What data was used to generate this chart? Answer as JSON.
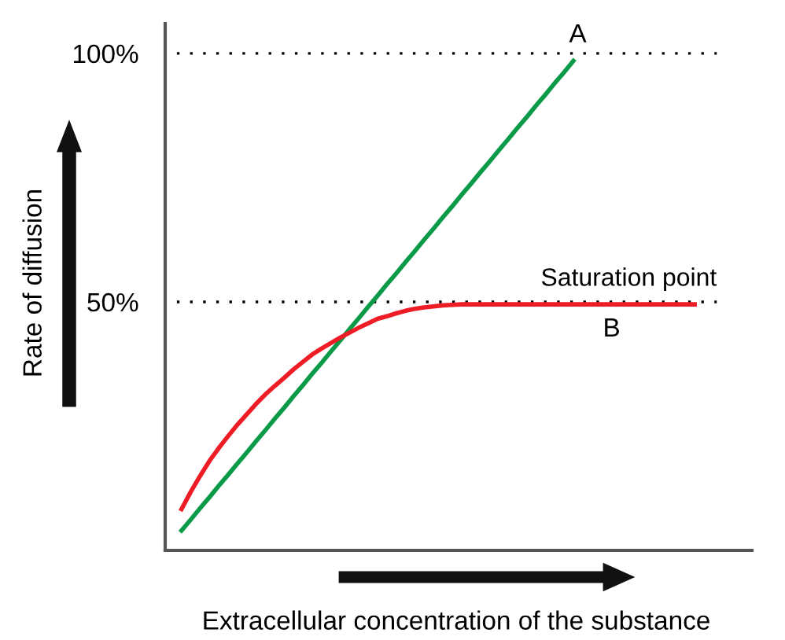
{
  "chart_data": {
    "type": "line",
    "xlabel": "Extracellular concentration of the substance",
    "ylabel": "Rate of diffusion",
    "categories": [
      null,
      null,
      null,
      null,
      null,
      null,
      null,
      null,
      null,
      null,
      null,
      null,
      null,
      null,
      null,
      null,
      null,
      null,
      null,
      null,
      null,
      null,
      null,
      null,
      null,
      null,
      null,
      null,
      null,
      null,
      null,
      null,
      null,
      null,
      null,
      null,
      null,
      null,
      null,
      null,
      null,
      null,
      null,
      null,
      null,
      null,
      null,
      null,
      null,
      null,
      null,
      null,
      null,
      null,
      null,
      null,
      null
    ],
    "series": [
      {
        "name": "A",
        "color": "#0a9a48",
        "values": [
          4.0,
          6.2,
          8.5,
          10.7,
          13.0,
          15.2,
          17.5,
          19.7,
          22.0,
          24.2,
          26.5,
          28.7,
          31.0,
          33.2,
          35.5,
          37.7,
          40.0,
          42.2,
          44.5,
          46.7,
          49.0,
          51.2,
          53.5,
          55.7,
          58.0,
          60.2,
          62.5,
          64.7,
          67.0,
          69.2,
          71.5,
          73.7,
          76.0,
          78.2,
          80.5,
          82.7,
          85.0,
          87.2,
          89.5,
          91.7,
          94.0,
          96.2,
          98.5,
          null,
          null,
          null,
          null,
          null,
          null,
          null,
          null,
          null,
          null,
          null,
          null,
          null,
          null
        ]
      },
      {
        "name": "B",
        "color": "#ee1c25",
        "values": [
          8.3,
          11.8,
          15,
          18,
          20.6,
          23,
          25.3,
          27.4,
          29.5,
          31.4,
          33.1,
          34.7,
          36.4,
          37.9,
          39.4,
          40.6,
          41.7,
          42.8,
          43.8,
          44.8,
          45.7,
          46.6,
          47.1,
          47.7,
          48.2,
          48.6,
          48.9,
          49.1,
          49.3,
          49.4,
          49.5,
          49.5,
          49.5,
          49.5,
          49.5,
          49.5,
          49.5,
          49.5,
          49.5,
          49.5,
          49.5,
          49.5,
          49.5,
          49.5,
          49.5,
          49.5,
          49.5,
          49.5,
          49.5,
          49.5,
          49.5,
          49.5,
          49.5,
          49.5,
          49.5,
          49.5,
          null
        ]
      }
    ],
    "ylim": [
      0,
      106
    ],
    "yticks": [
      {
        "value": 100,
        "label": "100%"
      },
      {
        "value": 50,
        "label": "50%"
      }
    ],
    "ref_lines": [
      {
        "axis": "y",
        "value": 100,
        "line_style": "dotted",
        "color": "#000000"
      },
      {
        "axis": "y",
        "value": 50,
        "label": "Saturation point",
        "line_style": "dotted",
        "color": "#000000"
      }
    ],
    "tick_labels": "y",
    "grid": false,
    "legend": false,
    "marker": "none",
    "line_style": "solid"
  }
}
